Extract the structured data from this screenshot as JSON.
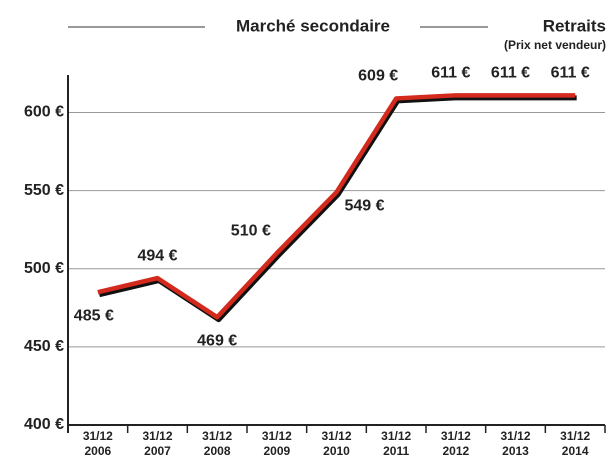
{
  "chart_data": {
    "type": "line",
    "title": "Marché secondaire",
    "subtitle": "Retraits",
    "annotation": "(Prix net vendeur)",
    "categories": [
      "31/12\n2006",
      "31/12\n2007",
      "31/12\n2008",
      "31/12\n2009",
      "31/12\n2010",
      "31/12\n2011",
      "31/12\n2012",
      "31/12\n2013",
      "31/12\n2014"
    ],
    "series": [
      {
        "name": "Retraits",
        "color": "#d42a1e",
        "values": [
          485,
          494,
          469,
          510,
          549,
          609,
          611,
          611,
          611
        ],
        "value_labels": [
          "485 €",
          "494 €",
          "469 €",
          "510 €",
          "549 €",
          "609 €",
          "611 €",
          "611 €",
          "611 €"
        ]
      }
    ],
    "ylim": [
      400,
      624
    ],
    "yticks": [
      {
        "value": 400,
        "label": "400 €"
      },
      {
        "value": 450,
        "label": "450 €"
      },
      {
        "value": 500,
        "label": "500 €"
      },
      {
        "value": 550,
        "label": "550 €"
      },
      {
        "value": 600,
        "label": "600 €"
      }
    ],
    "grid": true
  }
}
